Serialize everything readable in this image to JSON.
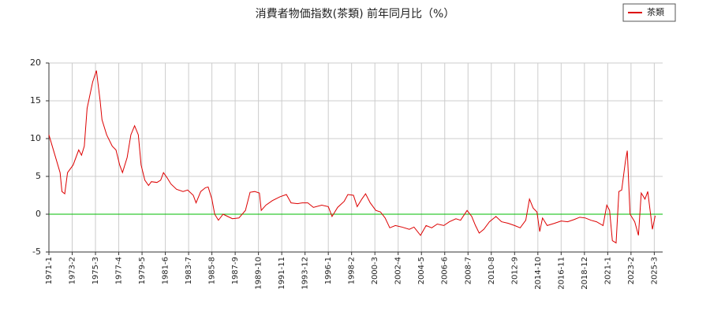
{
  "chart_data": {
    "type": "line",
    "title": "消費者物価指数(茶類) 前年同月比（%）",
    "x": [
      "1971-1",
      "1971-7",
      "1972-1",
      "1972-3",
      "1972-6",
      "1972-9",
      "1973-3",
      "1973-9",
      "1973-12",
      "1974-3",
      "1974-6",
      "1974-12",
      "1975-4",
      "1975-8",
      "1975-10",
      "1976-3",
      "1976-9",
      "1977-1",
      "1977-5",
      "1977-8",
      "1978-1",
      "1978-5",
      "1978-9",
      "1979-1",
      "1979-4",
      "1979-8",
      "1979-12",
      "1980-3",
      "1980-9",
      "1981-1",
      "1981-4",
      "1981-8",
      "1981-12",
      "1982-6",
      "1983-1",
      "1983-6",
      "1983-12",
      "1984-3",
      "1984-8",
      "1985-1",
      "1985-4",
      "1985-8",
      "1985-11",
      "1986-3",
      "1986-8",
      "1987-1",
      "1987-6",
      "1988-1",
      "1988-8",
      "1989-1",
      "1989-6",
      "1989-11",
      "1990-1",
      "1990-6",
      "1991-1",
      "1991-9",
      "1992-4",
      "1992-9",
      "1993-4",
      "1993-9",
      "1994-3",
      "1994-9",
      "1995-6",
      "1996-1",
      "1996-5",
      "1996-11",
      "1997-6",
      "1997-10",
      "1998-4",
      "1998-8",
      "1999-1",
      "1999-5",
      "1999-10",
      "2000-4",
      "2000-9",
      "2001-2",
      "2001-7",
      "2002-1",
      "2002-8",
      "2003-4",
      "2003-9",
      "2004-4",
      "2004-10",
      "2005-4",
      "2005-10",
      "2006-5",
      "2006-11",
      "2007-6",
      "2007-11",
      "2008-6",
      "2008-11",
      "2009-3",
      "2009-7",
      "2009-12",
      "2010-6",
      "2011-1",
      "2011-7",
      "2012-2",
      "2012-9",
      "2013-3",
      "2013-9",
      "2014-1",
      "2014-5",
      "2014-9",
      "2014-12",
      "2015-3",
      "2015-8",
      "2016-4",
      "2016-11",
      "2017-6",
      "2018-1",
      "2018-7",
      "2019-1",
      "2019-7",
      "2020-1",
      "2020-8",
      "2020-12",
      "2021-3",
      "2021-6",
      "2021-10",
      "2022-1",
      "2022-4",
      "2022-8",
      "2022-10",
      "2023-1",
      "2023-6",
      "2023-10",
      "2024-1",
      "2024-5",
      "2024-8",
      "2024-10",
      "2025-1",
      "2025-4"
    ],
    "series": [
      {
        "name": "茶類",
        "color": "#dd0000",
        "values": [
          10.5,
          8,
          5.5,
          3,
          2.7,
          5.5,
          6.5,
          8.5,
          7.8,
          9,
          14,
          17.5,
          19,
          15,
          12.5,
          10.5,
          9,
          8.5,
          6.5,
          5.5,
          7.5,
          10.5,
          11.7,
          10.5,
          6.5,
          4.5,
          3.8,
          4.3,
          4.2,
          4.5,
          5.5,
          4.8,
          4,
          3.3,
          3,
          3.2,
          2.5,
          1.5,
          3,
          3.5,
          3.6,
          2,
          0,
          -0.8,
          0,
          -0.3,
          -0.6,
          -0.5,
          0.5,
          2.9,
          3,
          2.8,
          0.5,
          1.2,
          1.8,
          2.3,
          2.6,
          1.5,
          1.4,
          1.5,
          1.5,
          0.9,
          1.2,
          1,
          -0.3,
          0.9,
          1.7,
          2.6,
          2.5,
          1,
          2,
          2.7,
          1.5,
          0.5,
          0.3,
          -0.5,
          -1.8,
          -1.5,
          -1.7,
          -2,
          -1.7,
          -2.8,
          -1.5,
          -1.8,
          -1.3,
          -1.5,
          -1,
          -0.6,
          -0.8,
          0.5,
          -0.3,
          -1.5,
          -2.5,
          -2,
          -1,
          -0.3,
          -1,
          -1.2,
          -1.5,
          -1.8,
          -0.8,
          2,
          0.8,
          0.3,
          -2.3,
          -0.5,
          -1.5,
          -1.2,
          -0.9,
          -1,
          -0.7,
          -0.4,
          -0.5,
          -0.8,
          -1,
          -1.5,
          1.2,
          0.5,
          -3.5,
          -3.8,
          3,
          3.2,
          7,
          8.4,
          0,
          -1,
          -2.8,
          2.8,
          2,
          3,
          1,
          -2,
          -0.2
        ]
      }
    ],
    "xlim": [
      "1971-1",
      "2025-12"
    ],
    "xticks": [
      "1971-1",
      "1973-2",
      "1975-3",
      "1977-4",
      "1979-5",
      "1981-6",
      "1983-7",
      "1985-8",
      "1987-9",
      "1989-10",
      "1991-11",
      "1993-12",
      "1996-1",
      "1998-2",
      "2000-3",
      "2002-4",
      "2004-5",
      "2006-6",
      "2008-7",
      "2010-8",
      "2012-9",
      "2014-10",
      "2016-11",
      "2018-12",
      "2021-1",
      "2023-2",
      "2025-3"
    ],
    "ylim": [
      -5,
      20
    ],
    "yticks": [
      -5,
      0,
      5,
      10,
      15,
      20
    ],
    "grid": true,
    "hline": 0,
    "hline_color": "#00bb00",
    "legend": "top-right"
  }
}
